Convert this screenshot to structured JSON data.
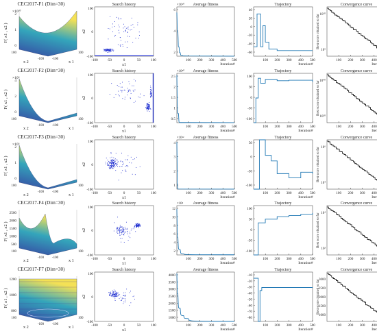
{
  "figure": {
    "rows": [
      {
        "surface_title": "CEC2017-F1 (Dim=30)",
        "surface_zlabel": "F( x1 , x2 )",
        "surface_exp": "×10¹⁰",
        "surface_zticks": [
          "2",
          "1",
          "0"
        ],
        "surface_xy_ticks": [
          "100",
          "-100",
          "-100",
          "100"
        ],
        "search_ylim": [
          "100",
          "-100"
        ],
        "fitness_exp": "×10¹⁰",
        "fitness_ticks": [
          "6",
          "4",
          "2"
        ],
        "traj_ticks": [
          "40",
          "20",
          "0",
          "-20",
          "-40",
          "-60"
        ],
        "conv_yticks": [
          "10¹⁰",
          "10⁵"
        ]
      },
      {
        "surface_title": "CEC2017-F2 (Dim=30)",
        "surface_zlabel": "F( x1 , x2 )",
        "surface_exp": "×10⁴",
        "surface_zticks": [
          "4",
          "2",
          "0"
        ],
        "surface_xy_ticks": [
          "100",
          "-100",
          "-100",
          "100"
        ],
        "search_ylim": [
          "100",
          "-100"
        ],
        "fitness_exp": "×10⁴⁰",
        "fitness_ticks": [
          "2.5",
          "2",
          "1.5",
          "1",
          "0.5"
        ],
        "traj_ticks": [
          "100",
          "50",
          "0",
          "-50",
          "-100"
        ],
        "conv_yticks": [
          "10⁴⁰",
          "10²⁰"
        ]
      },
      {
        "surface_title": "CEC2017-F3 (Dim=30)",
        "surface_zlabel": "F( x1 , x2 )",
        "surface_exp": "×10⁵",
        "surface_zticks": [
          "2",
          "1",
          "0"
        ],
        "surface_xy_ticks": [
          "100",
          "-100",
          "-100",
          "100"
        ],
        "search_ylim": [
          "100",
          "-100"
        ],
        "fitness_exp": "×10¹²",
        "fitness_ticks": [
          "4",
          "3",
          "2",
          "1"
        ],
        "traj_ticks": [
          "50",
          "0",
          "-50",
          "-100"
        ],
        "conv_yticks": [
          "10⁶",
          "10⁴"
        ]
      },
      {
        "surface_title": "CEC2017-F4 (Dim=30)",
        "surface_zlabel": "F( x1 , x2 )",
        "surface_exp": "",
        "surface_zticks": [
          "2500",
          "2000",
          "1500",
          "1000",
          "500"
        ],
        "surface_xy_ticks": [
          "100",
          "-100",
          "-100",
          "100"
        ],
        "search_ylim": [
          "100",
          "-100"
        ],
        "fitness_exp": "×10⁴",
        "fitness_ticks": [
          "12",
          "10",
          "8",
          "6",
          "4",
          "2"
        ],
        "traj_ticks": [
          "100",
          "50",
          "0",
          "-50",
          "-100"
        ],
        "conv_yticks": [
          "10⁴",
          "10³"
        ]
      },
      {
        "surface_title": "CEC2017-F7 (Dim=30)",
        "surface_zlabel": "F( x1 , x2 )",
        "surface_exp": "",
        "surface_zticks": [
          "1200",
          "1000",
          "800"
        ],
        "surface_xy_ticks": [
          "100",
          "-100",
          "-100",
          "100"
        ],
        "search_ylim": [
          "100",
          "-100"
        ],
        "fitness_exp": "",
        "fitness_ticks": [
          "4000",
          "3500",
          "3000",
          "2500",
          "2000",
          "1500",
          "1000"
        ],
        "traj_ticks": [
          "-10",
          "-20",
          "-30",
          "-40",
          "-50",
          "-60",
          "-70",
          "-80"
        ],
        "conv_yticks": [
          "3000",
          "2500",
          "2000",
          "1500",
          "1000"
        ]
      }
    ],
    "col_titles": {
      "search": "Search history",
      "fitness": "Average fitness",
      "traj": "Trajectory",
      "conv": "Convergence curve"
    },
    "labels": {
      "x1": "x1",
      "x2": "x2",
      "surf_x1": "x 1",
      "surf_x2": "x 2",
      "iteration": "Iteration#",
      "best_score": "Best score obtained so far"
    },
    "search_xticks": [
      "-100",
      "-50",
      "0",
      "50",
      "100"
    ],
    "iter_ticks": [
      "100",
      "200",
      "300",
      "400",
      "500"
    ]
  },
  "chart_data": [
    {
      "type": "line",
      "row": 1,
      "title": "Average fitness",
      "xlabel": "Iteration#",
      "ylabel": "",
      "x": [
        1,
        10,
        20,
        30,
        50,
        100,
        500
      ],
      "values": [
        62000000000.0,
        34000000000.0,
        13000000000.0,
        5000000000.0,
        1000000000.0,
        300000000.0,
        100000000.0
      ],
      "ylim": [
        0,
        70000000000.0
      ]
    },
    {
      "type": "line",
      "row": 1,
      "title": "Trajectory",
      "xlabel": "Iteration#",
      "ylabel": "",
      "x": [
        1,
        30,
        60,
        80,
        100,
        130,
        200,
        500
      ],
      "values": [
        -40,
        30,
        -40,
        5,
        -30,
        -45,
        -48,
        -48
      ],
      "ylim": [
        -60,
        45
      ]
    },
    {
      "type": "line",
      "row": 1,
      "title": "Convergence curve",
      "xlabel": "Iteration#",
      "ylabel": "Best score obtained so far",
      "x": [
        1,
        500
      ],
      "values": [
        10000000000.0,
        1000.0
      ],
      "scale": "log"
    },
    {
      "type": "line",
      "row": 2,
      "title": "Average fitness",
      "xlabel": "Iteration#",
      "ylabel": "",
      "x": [
        1,
        15,
        30,
        500
      ],
      "values": [
        2.6e+40,
        5e+39,
        1e+38,
        1e+37
      ],
      "ylim": [
        0,
        2.7e+40
      ]
    },
    {
      "type": "line",
      "row": 2,
      "title": "Trajectory",
      "xlabel": "Iteration#",
      "ylabel": "",
      "x": [
        1,
        20,
        40,
        60,
        100,
        200,
        300,
        500
      ],
      "values": [
        -100,
        0,
        80,
        60,
        75,
        70,
        72,
        65
      ],
      "ylim": [
        -100,
        100
      ]
    },
    {
      "type": "line",
      "row": 2,
      "title": "Convergence curve",
      "xlabel": "Iteration#",
      "ylabel": "Best score obtained so far",
      "x": [
        1,
        500
      ],
      "values": [
        1e+40,
        100000.0
      ],
      "scale": "log"
    },
    {
      "type": "line",
      "row": 3,
      "title": "Average fitness",
      "xlabel": "Iteration#",
      "ylabel": "",
      "x": [
        1,
        5,
        15,
        500
      ],
      "values": [
        4200000000000.0,
        500000000000.0,
        10000000000.0,
        1000000000.0
      ],
      "ylim": [
        0,
        4400000000000.0
      ]
    },
    {
      "type": "line",
      "row": 3,
      "title": "Trajectory",
      "xlabel": "Iteration#",
      "ylabel": "",
      "x": [
        1,
        50,
        100,
        150,
        200,
        300,
        400,
        500
      ],
      "values": [
        -100,
        75,
        20,
        0,
        -45,
        -60,
        -40,
        -45
      ],
      "ylim": [
        -100,
        75
      ]
    },
    {
      "type": "line",
      "row": 3,
      "title": "Convergence curve",
      "xlabel": "Iteration#",
      "ylabel": "Best score obtained so far",
      "x": [
        1,
        500
      ],
      "values": [
        1000000.0,
        1000.0
      ],
      "scale": "log"
    },
    {
      "type": "line",
      "row": 4,
      "title": "Average fitness",
      "xlabel": "Iteration#",
      "ylabel": "",
      "x": [
        1,
        10,
        30,
        60,
        500
      ],
      "values": [
        130000.0,
        50000.0,
        15000.0,
        3000.0,
        500
      ],
      "ylim": [
        0,
        140000.0
      ]
    },
    {
      "type": "line",
      "row": 4,
      "title": "Trajectory",
      "xlabel": "Iteration#",
      "ylabel": "",
      "x": [
        1,
        40,
        100,
        200,
        300,
        400,
        500
      ],
      "values": [
        -100,
        30,
        45,
        55,
        60,
        65,
        70
      ],
      "ylim": [
        -100,
        100
      ]
    },
    {
      "type": "line",
      "row": 4,
      "title": "Convergence curve",
      "xlabel": "Iteration#",
      "ylabel": "Best score obtained so far",
      "x": [
        1,
        500
      ],
      "values": [
        10000.0,
        400.0
      ],
      "scale": "log"
    },
    {
      "type": "line",
      "row": 5,
      "title": "Average fitness",
      "xlabel": "Iteration#",
      "ylabel": "",
      "x": [
        1,
        10,
        30,
        60,
        100,
        500
      ],
      "values": [
        4200,
        2800,
        1800,
        1300,
        1100,
        900
      ],
      "ylim": [
        900,
        4300
      ]
    },
    {
      "type": "line",
      "row": 5,
      "title": "Trajectory",
      "xlabel": "Iteration#",
      "ylabel": "",
      "x": [
        1,
        40,
        55,
        70,
        100,
        500
      ],
      "values": [
        -10,
        -80,
        -30,
        -25,
        -25,
        -25
      ],
      "ylim": [
        -80,
        0
      ]
    },
    {
      "type": "line",
      "row": 5,
      "title": "Convergence curve",
      "xlabel": "Iteration#",
      "ylabel": "Best score obtained so far",
      "x": [
        1,
        500
      ],
      "values": [
        3000,
        900
      ],
      "ylim": [
        900,
        3100
      ]
    }
  ],
  "colors": {
    "fitness_line": "#1f77b4",
    "traj_line": "#1f77b4",
    "conv_line": "#000000",
    "scatter": "#1f2fd0",
    "surface_low": "#2c3e9e",
    "surface_mid": "#2aa1b8",
    "surface_high": "#f4e04d"
  }
}
